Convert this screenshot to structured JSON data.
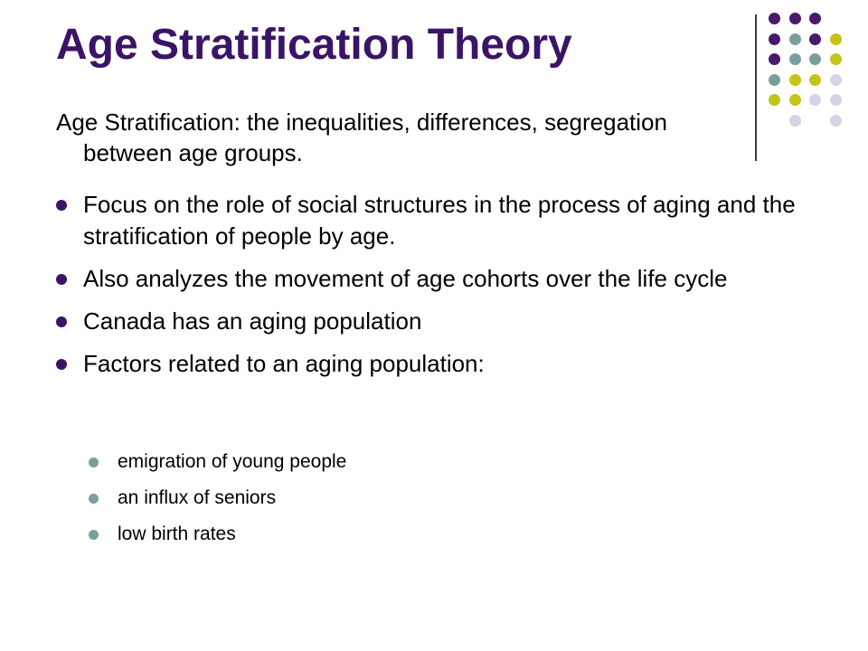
{
  "slide": {
    "title": "Age Stratification Theory",
    "intro": {
      "term": "Age Stratification",
      "definition": ": the inequalities, differences, segregation between age groups."
    },
    "bullets": [
      "Focus on the role of social structures in the process of aging and the stratification of people by age.",
      "Also analyzes the movement of age cohorts over the life cycle",
      "Canada has an aging population",
      "Factors related to an aging population:"
    ],
    "sub_bullets": [
      "emigration of young people",
      "an influx of seniors",
      "low birth rates"
    ]
  },
  "theme": {
    "title_color": "#3b1466",
    "bullet_color": "#3b1466",
    "sub_bullet_color": "#7a9e9e",
    "dot_colors": {
      "purple": "#4a1a6b",
      "teal": "#7a9e9e",
      "olive": "#c3c417",
      "lavender": "#d4d4e6"
    },
    "dot_grid": [
      [
        "purple",
        "purple",
        "purple",
        null
      ],
      [
        "purple",
        "teal",
        "purple",
        "olive"
      ],
      [
        "purple",
        "teal",
        "teal",
        "olive"
      ],
      [
        "teal",
        "olive",
        "olive",
        "lavender"
      ],
      [
        "olive",
        "olive",
        "lavender",
        "lavender"
      ],
      [
        null,
        "lavender",
        null,
        "lavender"
      ]
    ]
  }
}
